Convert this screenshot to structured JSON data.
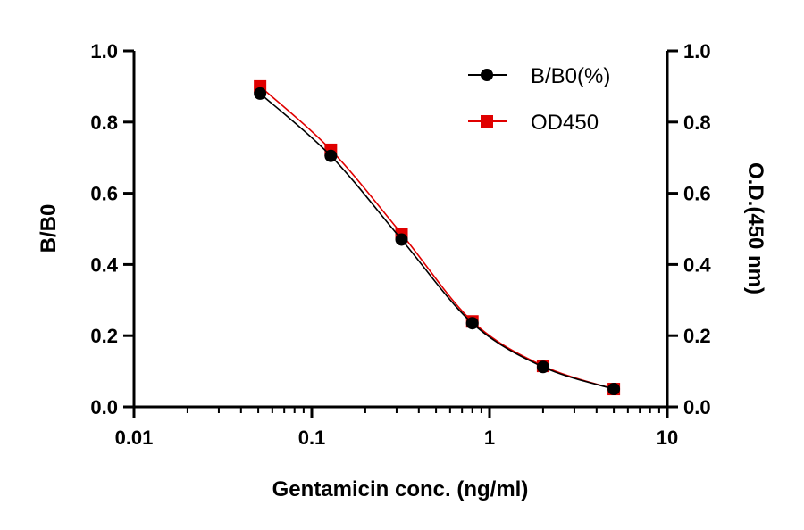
{
  "chart_data": {
    "type": "line",
    "xlabel": "Gentamicin conc. (ng/ml)",
    "ylabel": "B/B0",
    "y2label": "O.D.(450 nm)",
    "xscale": "log",
    "xlim": [
      0.01,
      10
    ],
    "ylim": [
      0,
      1.0
    ],
    "y2lim": [
      0,
      1.0
    ],
    "x_ticks": [
      "0.01",
      "0.1",
      "1",
      "10"
    ],
    "y_ticks": [
      "0.0",
      "0.2",
      "0.4",
      "0.6",
      "0.8",
      "1.0"
    ],
    "y2_ticks": [
      "0.0",
      "0.2",
      "0.4",
      "0.6",
      "0.8",
      "1.0"
    ],
    "grid": false,
    "legend_position": "top-right",
    "x": [
      0.0512,
      0.128,
      0.32,
      0.8,
      2,
      5
    ],
    "series": [
      {
        "name": "B/B0(%)",
        "color": "#000000",
        "marker": "circle",
        "axis": "left",
        "values": [
          0.88,
          0.705,
          0.47,
          0.235,
          0.112,
          0.05
        ]
      },
      {
        "name": "OD450",
        "color": "#e00000",
        "marker": "square",
        "axis": "right",
        "values": [
          0.9,
          0.722,
          0.486,
          0.24,
          0.115,
          0.05
        ]
      }
    ]
  }
}
